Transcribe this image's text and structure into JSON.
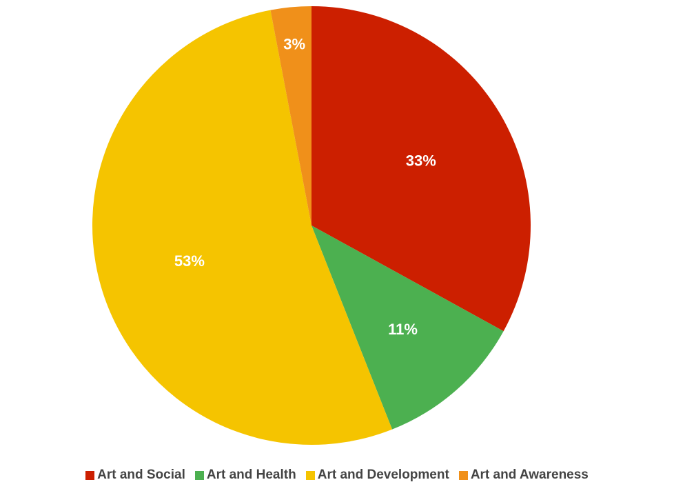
{
  "chart_data": {
    "type": "pie",
    "categories": [
      "Art and Social",
      "Art and Health",
      "Art and Development",
      "Art and Awareness"
    ],
    "values": [
      33,
      11,
      53,
      3
    ],
    "labels": [
      "33%",
      "11%",
      "53%",
      "3%"
    ],
    "colors": [
      "#cc1f00",
      "#4cb050",
      "#f5c400",
      "#f0901a"
    ],
    "start_angle_deg": 0,
    "direction": "clockwise",
    "legend_position": "bottom"
  }
}
